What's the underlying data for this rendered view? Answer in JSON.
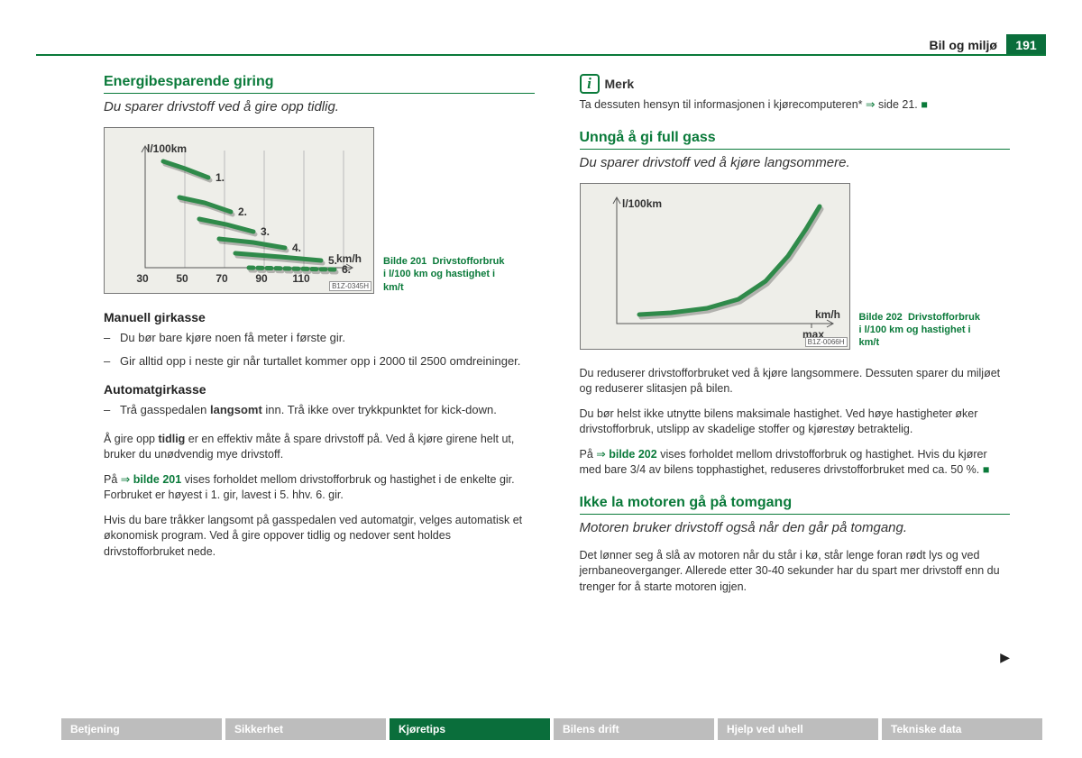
{
  "header": {
    "section": "Bil og miljø",
    "page_number": "191"
  },
  "colors": {
    "brand_green": "#0a7a3a",
    "chart_bg": "#eeeee9",
    "chart_axis": "#555555",
    "chart_grid": "#bbbbbb",
    "curve_color": "#2f8a4a",
    "curve_shadow": "rgba(0,0,0,0.25)",
    "tab_inactive": "#bdbdbd",
    "tab_active": "#0a6e3b"
  },
  "left": {
    "heading": "Energibesparende giring",
    "subtitle": "Du sparer drivstoff ved å gire opp tidlig.",
    "figure201": {
      "caption_prefix": "Bilde 201",
      "caption": "Drivstofforbruk i l/100 km og hastighet i km/t",
      "code": "B1Z-0345H",
      "ylabel": "l/100km",
      "xlabel": "km/h",
      "xticks": [
        "30",
        "50",
        "70",
        "90",
        "110"
      ],
      "series": [
        {
          "label": "1.",
          "color": "#2f8a4a",
          "dash": "0",
          "points": [
            [
              20,
              22
            ],
            [
              44,
              30
            ],
            [
              70,
              40
            ]
          ]
        },
        {
          "label": "2.",
          "color": "#2f8a4a",
          "dash": "0",
          "points": [
            [
              38,
              62
            ],
            [
              66,
              68
            ],
            [
              95,
              78
            ]
          ]
        },
        {
          "label": "3.",
          "color": "#2f8a4a",
          "dash": "0",
          "points": [
            [
              60,
              86
            ],
            [
              90,
              92
            ],
            [
              120,
              100
            ]
          ]
        },
        {
          "label": "4.",
          "color": "#2f8a4a",
          "dash": "0",
          "points": [
            [
              82,
              108
            ],
            [
              120,
              112
            ],
            [
              155,
              118
            ]
          ]
        },
        {
          "label": "5.",
          "color": "#2f8a4a",
          "dash": "0",
          "points": [
            [
              100,
              124
            ],
            [
              150,
              128
            ],
            [
              195,
              132
            ]
          ]
        },
        {
          "label": "6.",
          "color": "#2f8a4a",
          "dash": "5 5",
          "points": [
            [
              115,
              140
            ],
            [
              160,
              141
            ],
            [
              210,
              142
            ]
          ]
        }
      ]
    },
    "manual_heading": "Manuell girkasse",
    "manual_items": [
      "Du bør bare kjøre noen få meter i første gir.",
      "Gir alltid opp i neste gir når turtallet kommer opp i 2000 til 2500 omdreininger."
    ],
    "auto_heading": "Automatgirkasse",
    "auto_item_pre": "Trå gasspedalen ",
    "auto_item_bold": "langsomt",
    "auto_item_post": " inn. Trå ikke over trykkpunktet for kick-down.",
    "para1_pre": "Å gire opp ",
    "para1_bold": "tidlig",
    "para1_post": " er en effektiv måte å spare drivstoff på. Ved å kjøre girene helt ut, bruker du unødvendig mye drivstoff.",
    "para2_pre": "På ",
    "para2_link": "bilde 201",
    "para2_post": " vises forholdet mellom drivstofforbruk og hastighet i de enkelte gir. Forbruket er høyest i 1. gir, lavest i 5. hhv. 6. gir.",
    "para3": "Hvis du bare tråkker langsomt på gasspedalen ved automatgir, velges automatisk et økonomisk program. Ved å gire oppover tidlig og nedover sent holdes drivstofforbruket nede."
  },
  "right": {
    "note_label": "Merk",
    "note_text_pre": "Ta dessuten hensyn til informasjonen i kjørecomputeren* ",
    "note_text_post": " side 21.",
    "heading2": "Unngå å gi full gass",
    "subtitle2": "Du sparer drivstoff ved å kjøre langsommere.",
    "figure202": {
      "caption_prefix": "Bilde 202",
      "caption": "Drivstofforbruk i l/100 km og hastighet i km/t",
      "code": "B1Z-0066H",
      "ylabel": "l/100km",
      "xlabel": "km/h",
      "xmax_label": "max",
      "curve": {
        "color": "#2f8a4a",
        "points": [
          [
            25,
            135
          ],
          [
            60,
            133
          ],
          [
            100,
            128
          ],
          [
            135,
            118
          ],
          [
            165,
            98
          ],
          [
            190,
            70
          ],
          [
            210,
            40
          ],
          [
            225,
            15
          ]
        ]
      }
    },
    "para_a": "Du reduserer drivstofforbruket ved å kjøre langsommere. Dessuten sparer du miljøet og reduserer slitasjen på bilen.",
    "para_b": "Du bør helst ikke utnytte bilens maksimale hastighet. Ved høye hastigheter øker drivstofforbruk, utslipp av skadelige stoffer og kjørestøy betraktelig.",
    "para_c_pre": "På ",
    "para_c_link": "bilde 202",
    "para_c_post": " vises forholdet mellom drivstofforbruk og hastighet. Hvis du kjører med bare 3/4 av bilens topphastighet, reduseres drivstofforbruket med ca. 50 %.",
    "heading3": "Ikke la motoren gå på tomgang",
    "subtitle3": "Motoren bruker drivstoff også når den går på tomgang.",
    "para_d": "Det lønner seg å slå av motoren når du står i kø, står lenge foran rødt lys og ved jernbaneoverganger. Allerede etter 30-40 sekunder har du spart mer drivstoff enn du trenger for å starte motoren igjen."
  },
  "footer_tabs": [
    {
      "label": "Betjening",
      "active": false
    },
    {
      "label": "Sikkerhet",
      "active": false
    },
    {
      "label": "Kjøretips",
      "active": true
    },
    {
      "label": "Bilens drift",
      "active": false
    },
    {
      "label": "Hjelp ved uhell",
      "active": false
    },
    {
      "label": "Tekniske data",
      "active": false
    }
  ]
}
